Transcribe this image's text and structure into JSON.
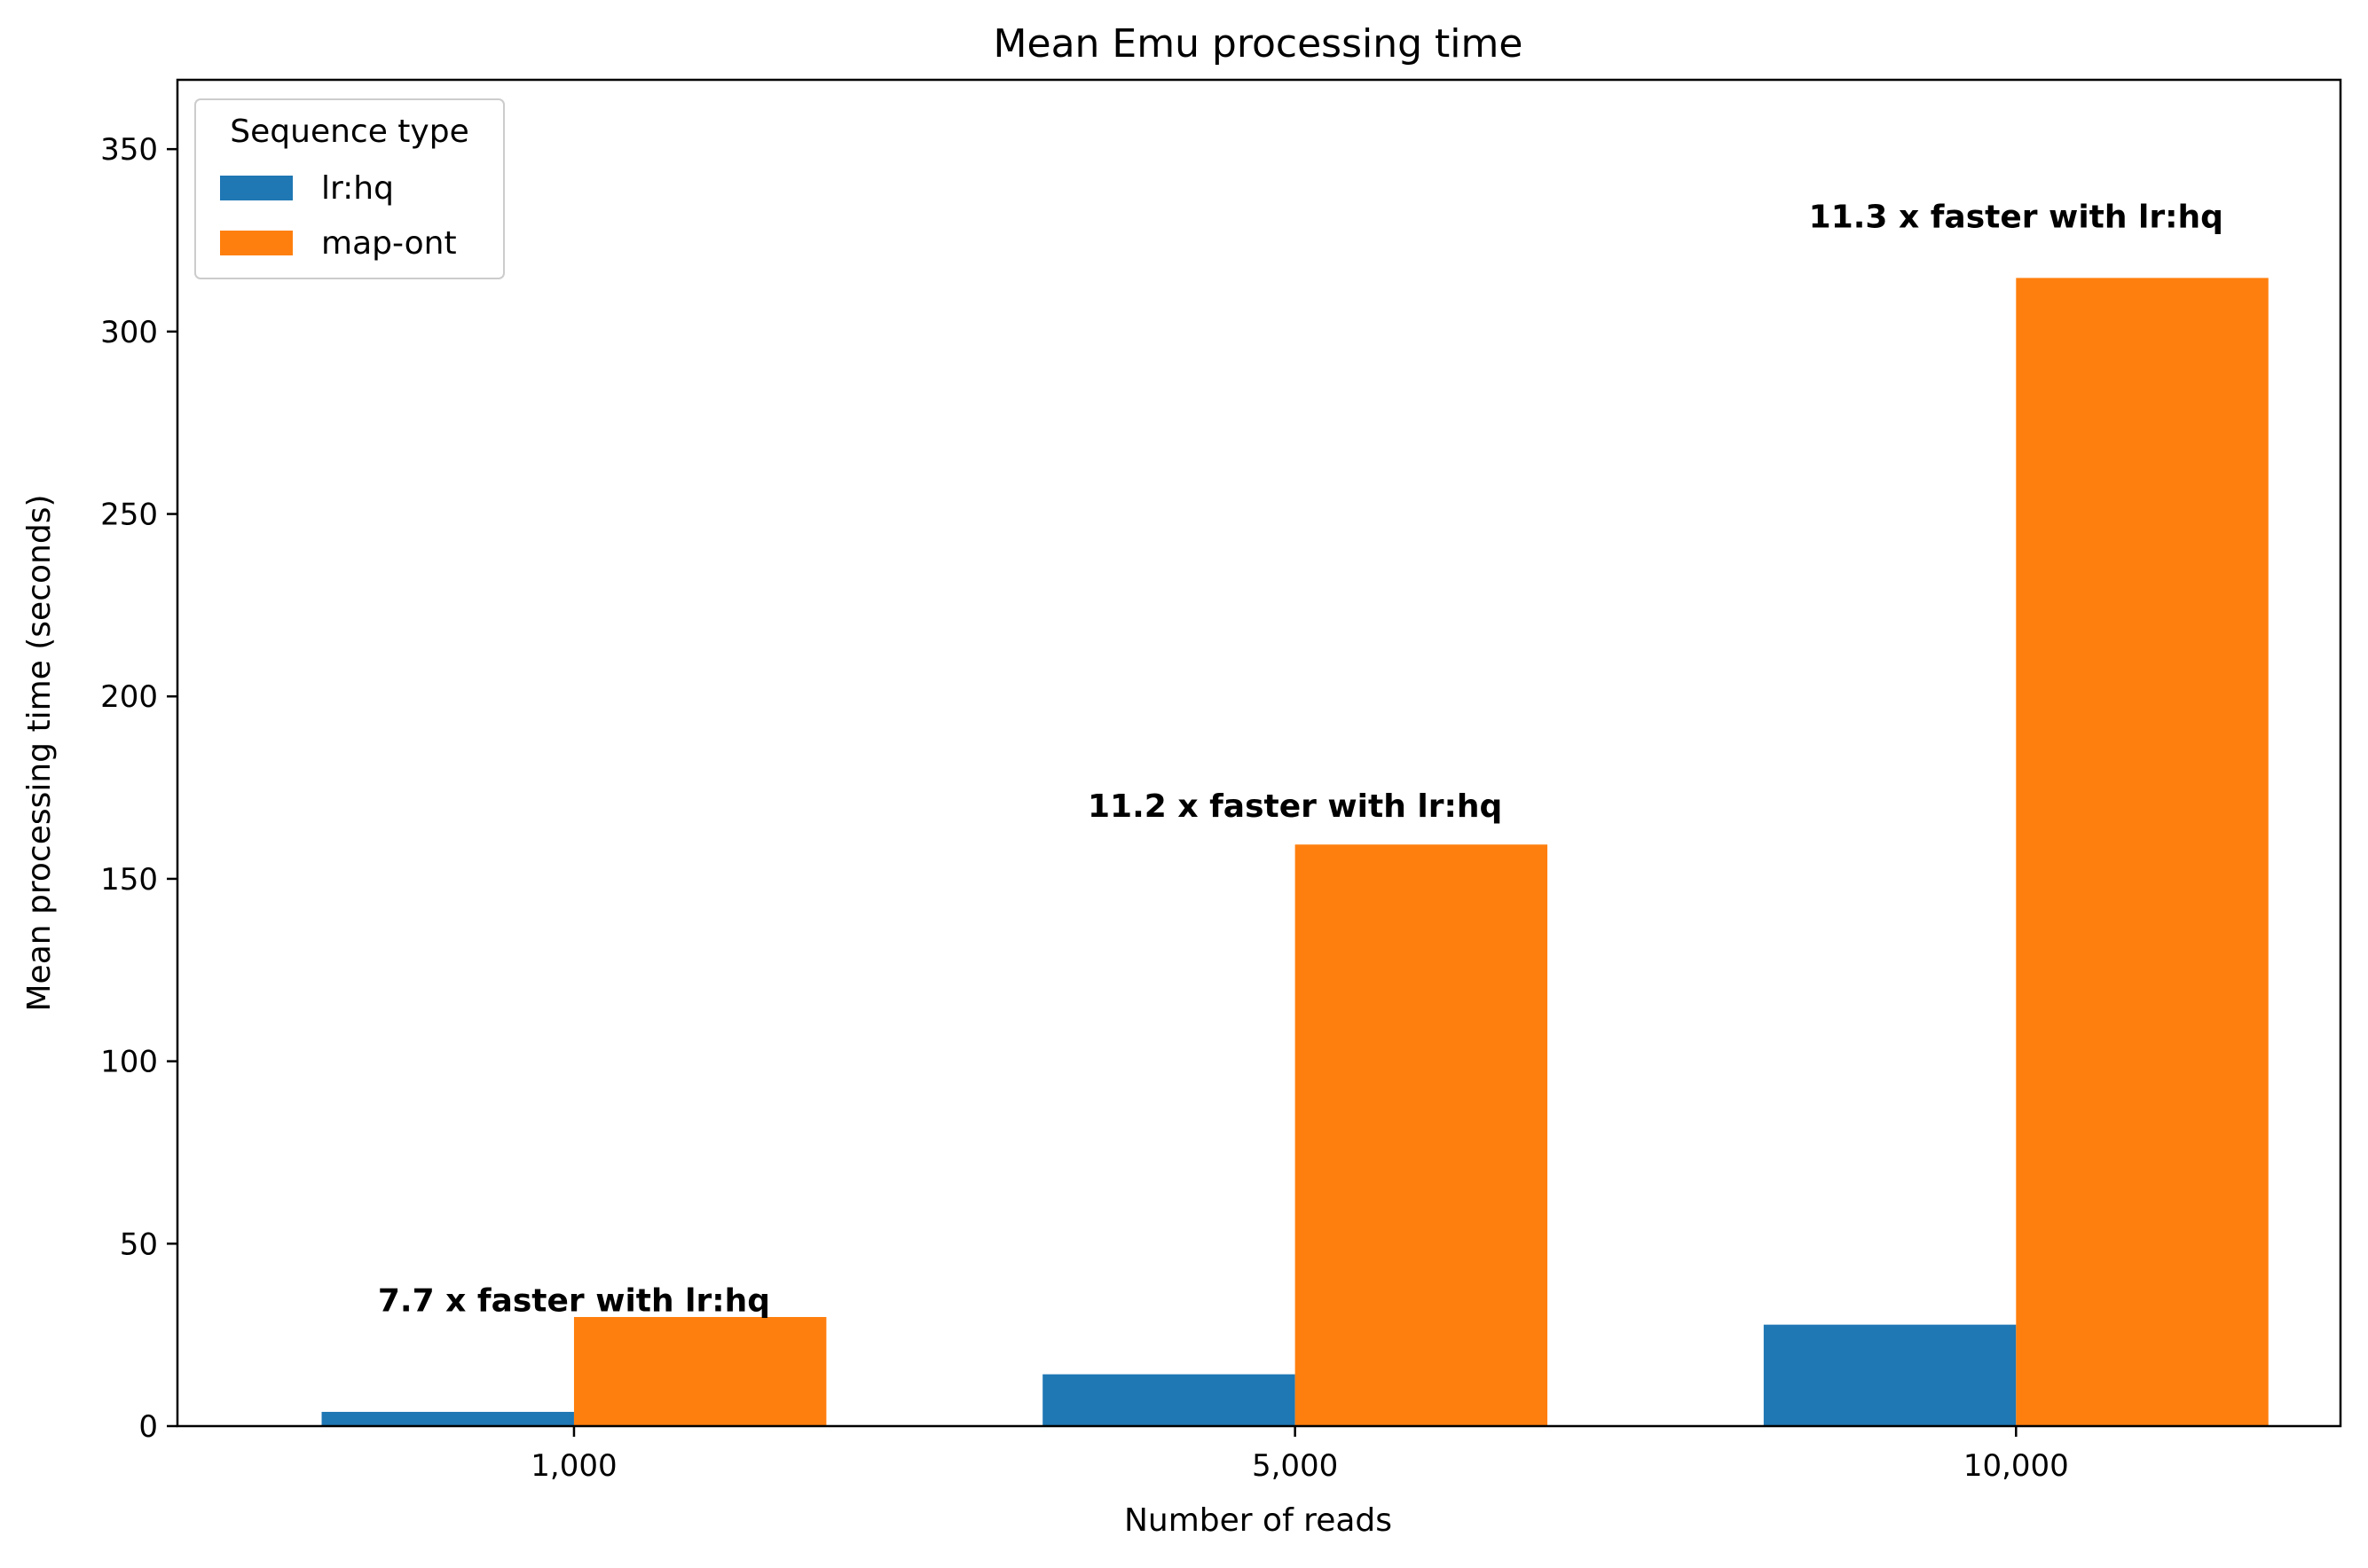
{
  "chart_data": {
    "type": "bar",
    "title": "Mean Emu processing time",
    "xlabel": "Number of reads",
    "ylabel": "Mean processing time (seconds)",
    "categories": [
      "1,000",
      "5,000",
      "10,000"
    ],
    "series": [
      {
        "name": "lr:hq",
        "color": "#1f77b4",
        "values": [
          3.9,
          14.2,
          27.8
        ]
      },
      {
        "name": "map-ont",
        "color": "#ff7f0e",
        "values": [
          29.9,
          159.4,
          314.7
        ]
      }
    ],
    "ylim": [
      0,
      369
    ],
    "yticks": [
      0,
      50,
      100,
      150,
      200,
      250,
      300,
      350
    ],
    "grid": false,
    "legend": {
      "title": "Sequence type",
      "position": "top-left"
    },
    "annotations": [
      {
        "category": "1,000",
        "text": "7.7 x faster with lr:hq",
        "y": 31.5
      },
      {
        "category": "5,000",
        "text": "11.2 x faster with lr:hq",
        "y": 167
      },
      {
        "category": "10,000",
        "text": "11.3 x faster with lr:hq",
        "y": 328.5
      }
    ]
  }
}
